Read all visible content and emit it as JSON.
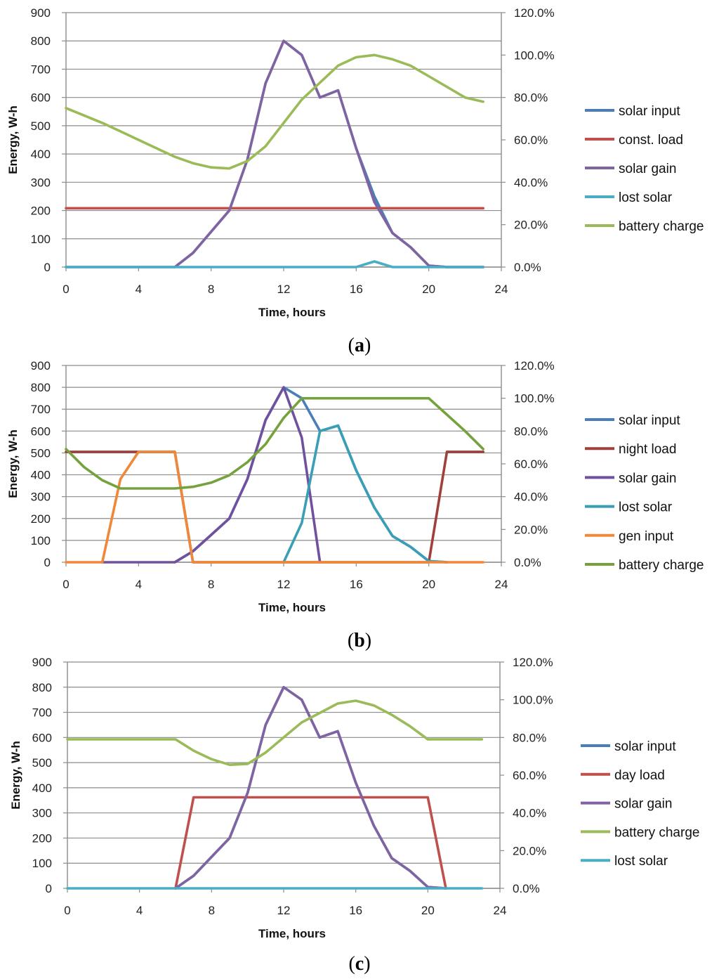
{
  "chart_data": [
    {
      "type": "line",
      "panel_label": "a",
      "xlabel": "Time, hours",
      "ylabel": "Energy, W-h",
      "xlim": [
        0,
        24
      ],
      "xticks": [
        0,
        4,
        8,
        12,
        16,
        20,
        24
      ],
      "ylim": [
        0,
        900
      ],
      "yticks": [
        0,
        100,
        200,
        300,
        400,
        500,
        600,
        700,
        800,
        900
      ],
      "y2lim": [
        0,
        120
      ],
      "y2ticks": [
        "0.0%",
        "20.0%",
        "40.0%",
        "60.0%",
        "80.0%",
        "100.0%",
        "120.0%"
      ],
      "grid": true,
      "legend_position": "right",
      "series": [
        {
          "name": "solar input",
          "color": "#4a7ebb",
          "axis": "left",
          "x": [
            0,
            1,
            2,
            3,
            4,
            5,
            6,
            7,
            8,
            9,
            10,
            11,
            12,
            13,
            14,
            15,
            16,
            17,
            18,
            19,
            20,
            21,
            22,
            23
          ],
          "values": [
            0,
            0,
            0,
            0,
            0,
            0,
            0,
            50,
            125,
            200,
            380,
            650,
            800,
            750,
            600,
            625,
            420,
            250,
            120,
            70,
            5,
            0,
            0,
            0
          ]
        },
        {
          "name": "const. load",
          "color": "#c0504d",
          "axis": "left",
          "x": [
            0,
            23
          ],
          "values": [
            208,
            208
          ]
        },
        {
          "name": "solar gain",
          "color": "#8064a2",
          "axis": "left",
          "x": [
            6,
            7,
            8,
            9,
            10,
            11,
            12,
            13,
            14,
            15,
            16,
            17,
            18,
            19,
            20,
            21,
            22,
            23
          ],
          "values": [
            0,
            50,
            125,
            200,
            380,
            650,
            800,
            750,
            600,
            625,
            420,
            230,
            120,
            70,
            5,
            0,
            0,
            0
          ]
        },
        {
          "name": "lost solar",
          "color": "#4bacc6",
          "axis": "left",
          "x": [
            0,
            16,
            17,
            18,
            23
          ],
          "values": [
            0,
            0,
            20,
            0,
            0
          ]
        },
        {
          "name": "battery charge",
          "color": "#9bbb59",
          "axis": "right",
          "x": [
            0,
            1,
            2,
            3,
            4,
            5,
            6,
            7,
            8,
            9,
            10,
            11,
            12,
            13,
            14,
            15,
            16,
            17,
            18,
            19,
            20,
            21,
            22,
            23
          ],
          "values": [
            75,
            71.5,
            68,
            64,
            60,
            56,
            52,
            49,
            47,
            46.5,
            50,
            57,
            68,
            79,
            87,
            95,
            99,
            100,
            98,
            95,
            90,
            85,
            80,
            78
          ]
        }
      ]
    },
    {
      "type": "line",
      "panel_label": "b",
      "xlabel": "Time, hours",
      "ylabel": "Energy, W-h",
      "xlim": [
        0,
        24
      ],
      "xticks": [
        0,
        4,
        8,
        12,
        16,
        20,
        24
      ],
      "ylim": [
        0,
        900
      ],
      "yticks": [
        0,
        100,
        200,
        300,
        400,
        500,
        600,
        700,
        800,
        900
      ],
      "y2lim": [
        0,
        120
      ],
      "y2ticks": [
        "0.0%",
        "20.0%",
        "40.0%",
        "60.0%",
        "80.0%",
        "100.0%",
        "120.0%"
      ],
      "grid": true,
      "legend_position": "right",
      "series": [
        {
          "name": "solar input",
          "color": "#4a7ebb",
          "axis": "left",
          "x": [
            6,
            7,
            8,
            9,
            10,
            11,
            12,
            13,
            14,
            15,
            16,
            17,
            18,
            19,
            20,
            21
          ],
          "values": [
            0,
            50,
            125,
            200,
            380,
            650,
            800,
            750,
            600,
            625,
            420,
            250,
            120,
            70,
            5,
            0
          ]
        },
        {
          "name": "night load",
          "color": "#a0403d",
          "axis": "left",
          "x": [
            0,
            4,
            5,
            6,
            7,
            20,
            21,
            23
          ],
          "values": [
            505,
            505,
            505,
            505,
            0,
            0,
            505,
            505
          ]
        },
        {
          "name": "solar gain",
          "color": "#7051a0",
          "axis": "left",
          "x": [
            2,
            6,
            7,
            8,
            9,
            10,
            11,
            12,
            13,
            14
          ],
          "values": [
            0,
            0,
            50,
            125,
            200,
            380,
            650,
            800,
            570,
            0
          ]
        },
        {
          "name": "lost solar",
          "color": "#3a9fb6",
          "axis": "left",
          "x": [
            12,
            13,
            14,
            15,
            16,
            17,
            18,
            19,
            20,
            21
          ],
          "values": [
            0,
            180,
            600,
            625,
            420,
            250,
            120,
            70,
            5,
            0
          ]
        },
        {
          "name": "gen input",
          "color": "#f0883a",
          "axis": "left",
          "x": [
            0,
            2,
            3,
            4,
            5,
            6,
            7,
            23
          ],
          "values": [
            0,
            0,
            380,
            505,
            505,
            505,
            0,
            0
          ]
        },
        {
          "name": "battery charge",
          "color": "#76a23e",
          "axis": "right",
          "x": [
            0,
            1,
            2,
            3,
            4,
            5,
            6,
            7,
            8,
            9,
            10,
            11,
            12,
            13,
            14,
            15,
            16,
            17,
            18,
            19,
            20,
            21,
            22,
            23
          ],
          "values": [
            69,
            58,
            50,
            45,
            45,
            45,
            45,
            46,
            48.5,
            53,
            61,
            72,
            88,
            100,
            100,
            100,
            100,
            100,
            100,
            100,
            100,
            90,
            80,
            69
          ]
        }
      ]
    },
    {
      "type": "line",
      "panel_label": "c",
      "xlabel": "Time, hours",
      "ylabel": "Energy, W-h",
      "xlim": [
        0,
        24
      ],
      "xticks": [
        0,
        4,
        8,
        12,
        16,
        20,
        24
      ],
      "ylim": [
        0,
        900
      ],
      "yticks": [
        0,
        100,
        200,
        300,
        400,
        500,
        600,
        700,
        800,
        900
      ],
      "y2lim": [
        0,
        120
      ],
      "y2ticks": [
        "0.0%",
        "20.0%",
        "40.0%",
        "60.0%",
        "80.0%",
        "100.0%",
        "120.0%"
      ],
      "grid": true,
      "legend_position": "right",
      "series": [
        {
          "name": "solar input",
          "color": "#4a7ebb",
          "axis": "left",
          "x": [
            6,
            7,
            8,
            9,
            10,
            11,
            12,
            13,
            14,
            15,
            16,
            17,
            18,
            19,
            20,
            21
          ],
          "values": [
            0,
            50,
            125,
            200,
            380,
            650,
            800,
            750,
            600,
            625,
            420,
            250,
            120,
            70,
            5,
            0
          ]
        },
        {
          "name": "day load",
          "color": "#c0504d",
          "axis": "left",
          "x": [
            6,
            7,
            20,
            21
          ],
          "values": [
            0,
            362,
            362,
            0
          ]
        },
        {
          "name": "solar gain",
          "color": "#8064a2",
          "axis": "left",
          "x": [
            6,
            7,
            8,
            9,
            10,
            11,
            12,
            13,
            14,
            15,
            16,
            17,
            18,
            19,
            20,
            21
          ],
          "values": [
            0,
            50,
            125,
            200,
            380,
            650,
            800,
            750,
            600,
            625,
            420,
            250,
            120,
            70,
            5,
            0
          ]
        },
        {
          "name": "battery charge",
          "color": "#9bbb59",
          "axis": "right",
          "x": [
            0,
            1,
            2,
            3,
            4,
            5,
            6,
            7,
            8,
            9,
            10,
            11,
            12,
            13,
            14,
            15,
            16,
            17,
            18,
            19,
            20,
            21,
            22,
            23
          ],
          "values": [
            79,
            79,
            79,
            79,
            79,
            79,
            79,
            73,
            68.5,
            65.5,
            66,
            72,
            80,
            88,
            93,
            98,
            99.5,
            97,
            92,
            86,
            79,
            79,
            79,
            79
          ]
        },
        {
          "name": "lost solar",
          "color": "#4bacc6",
          "axis": "left",
          "x": [
            0,
            23
          ],
          "values": [
            0,
            0
          ]
        }
      ]
    }
  ]
}
